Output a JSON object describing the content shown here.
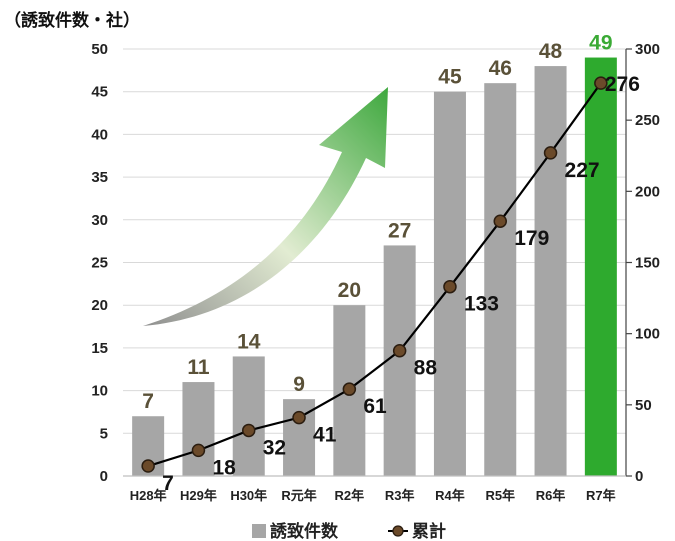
{
  "chart_data": {
    "type": "bar",
    "unit_label": "（誘致件数・社）",
    "categories": [
      "H28年",
      "H29年",
      "H30年",
      "R元年",
      "R2年",
      "R3年",
      "R4年",
      "R5年",
      "R6年",
      "R7年"
    ],
    "series": [
      {
        "name": "誘致件数",
        "type": "bar",
        "axis": "left",
        "values": [
          7,
          11,
          14,
          9,
          20,
          27,
          45,
          46,
          48,
          49
        ],
        "color": "#a6a6a6",
        "highlight_color": "#2eaa2e",
        "highlight_index": 9
      },
      {
        "name": "累計",
        "type": "line",
        "axis": "right",
        "values": [
          7,
          18,
          32,
          41,
          61,
          88,
          133,
          179,
          227,
          276
        ],
        "color": "#000000",
        "marker_color": "#6b4a2a"
      }
    ],
    "y_left": {
      "min": 0,
      "max": 50,
      "step": 5,
      "ticks": [
        "0",
        "5",
        "10",
        "15",
        "20",
        "25",
        "30",
        "35",
        "40",
        "45",
        "50"
      ]
    },
    "y_right": {
      "min": 0,
      "max": 300,
      "step": 50,
      "ticks": [
        "0",
        "50",
        "100",
        "150",
        "200",
        "250",
        "300"
      ]
    },
    "bar_label_color": "#5a5138",
    "highlight_label_color": "#3aaa35",
    "grid": true,
    "legend_position": "bottom"
  }
}
